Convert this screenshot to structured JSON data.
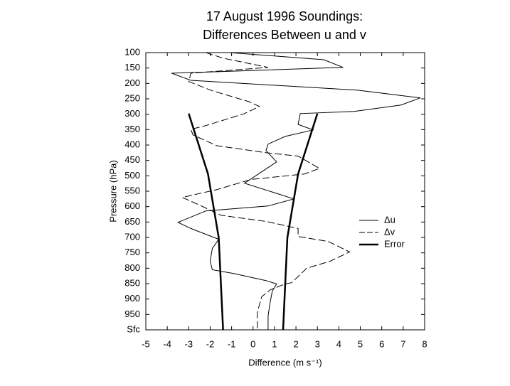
{
  "chart_data": {
    "type": "line",
    "title": [
      "17 August 1996 Soundings:",
      "Differences Between u and v"
    ],
    "xlabel": "Difference (m s⁻¹)",
    "ylabel": "Pressure (hPa)",
    "xlim": [
      -5,
      8
    ],
    "xticks": [
      -5,
      -4,
      -3,
      -2,
      -1,
      0,
      1,
      2,
      3,
      4,
      5,
      6,
      7,
      8
    ],
    "ylim": [
      1000,
      100
    ],
    "yticks": [
      100,
      150,
      200,
      250,
      300,
      350,
      400,
      450,
      500,
      550,
      600,
      650,
      700,
      750,
      800,
      850,
      900,
      950,
      {
        "value": 1000,
        "label": "Sfc"
      }
    ],
    "legend": "right",
    "series": [
      {
        "name": "Δu",
        "color": "#000000",
        "style": "solid",
        "width": 1,
        "values": [
          -1.1,
          3.3,
          4.2,
          -3.8,
          -2.9,
          4.9,
          7.8,
          6.9,
          4.7,
          2.2,
          2.1,
          2.8,
          1.5,
          0.7,
          0.6,
          1.1,
          -0.4,
          1.9,
          0.7,
          -2.2,
          -3.5,
          -2.9,
          -1.6,
          -1.9,
          -2.0,
          -1.9,
          -0.9,
          0.6,
          1.1,
          0.9,
          0.8,
          0.7,
          0.7
        ],
        "pressure": [
          100,
          123,
          148,
          167,
          190,
          222,
          247,
          270,
          291,
          298,
          333,
          351,
          372,
          397,
          418,
          455,
          524,
          575,
          598,
          614,
          651,
          671,
          706,
          736,
          777,
          805,
          817,
          840,
          851,
          874,
          909,
          955,
          999
        ]
      },
      {
        "name": "Δv",
        "color": "#000000",
        "style": "dashed",
        "width": 1,
        "values": [
          -2.2,
          -1.4,
          0.7,
          -2.9,
          -3.0,
          -1.9,
          -0.2,
          0.3,
          -0.4,
          -2.2,
          -2.9,
          -2.8,
          -1.7,
          0.6,
          2.1,
          3.1,
          2.4,
          -0.1,
          -1.7,
          -3.3,
          -2.4,
          -1.5,
          0.6,
          2.1,
          2.1,
          3.5,
          4.5,
          3.6,
          2.5,
          1.8,
          1.5,
          0.8,
          0.4,
          0.2,
          0.2
        ],
        "pressure": [
          100,
          118,
          148,
          167,
          194,
          224,
          259,
          275,
          298,
          337,
          349,
          367,
          402,
          425,
          436,
          476,
          494,
          512,
          545,
          570,
          598,
          628,
          648,
          671,
          697,
          713,
          747,
          777,
          800,
          847,
          851,
          870,
          893,
          943,
          999
        ]
      },
      {
        "name": "Error",
        "color": "#000000",
        "style": "solid",
        "width": 2.5,
        "values": [
          -3.0,
          -2.1,
          -1.6,
          -1.4,
          null,
          3.0,
          2.1,
          1.6,
          1.4
        ],
        "pressure": [
          298,
          494,
          701,
          999,
          null,
          298,
          494,
          701,
          999
        ]
      }
    ]
  }
}
